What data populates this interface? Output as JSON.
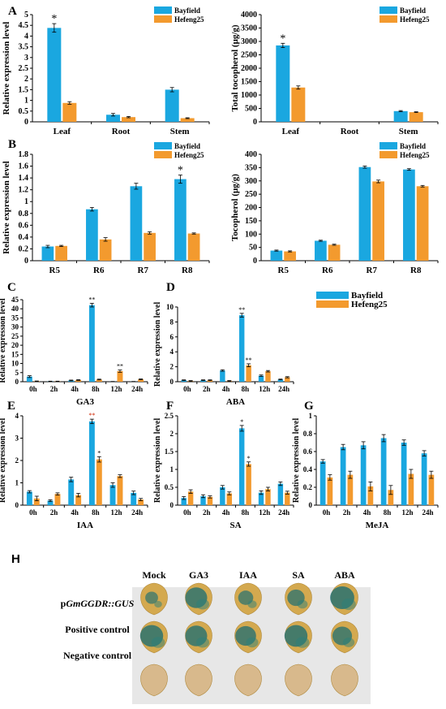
{
  "colors": {
    "bayfield": "#1aa7e0",
    "hefeng25": "#f39a2e",
    "photo_bg": "#e7e7e7"
  },
  "legend_names": [
    "Bayfield",
    "Hefeng25"
  ],
  "chart_data": [
    {
      "id": "A1",
      "letter": "A",
      "type": "bar",
      "ylabel": "Relative expression level",
      "categories": [
        "Leaf",
        "Root",
        "Stem"
      ],
      "ylim": [
        0,
        5
      ],
      "yticks": [
        0,
        0.5,
        1,
        1.5,
        2,
        2.5,
        3,
        3.5,
        4,
        4.5,
        5
      ],
      "series": [
        {
          "name": "Bayfield",
          "values": [
            4.38,
            0.33,
            1.5
          ],
          "err": [
            0.2,
            0.06,
            0.1
          ]
        },
        {
          "name": "Hefeng25",
          "values": [
            0.88,
            0.22,
            0.17
          ],
          "err": [
            0.06,
            0.03,
            0.02
          ]
        }
      ],
      "annotations": [
        {
          "text": "*",
          "category": 0,
          "series": 0
        }
      ],
      "legend": "top-right"
    },
    {
      "id": "A2",
      "letter": "",
      "type": "bar",
      "ylabel": "Total tocopherol (μg/g)",
      "categories": [
        "Leaf",
        "Root",
        "Stem"
      ],
      "ylim": [
        0,
        4000
      ],
      "yticks": [
        0,
        500,
        1000,
        1500,
        2000,
        2500,
        3000,
        3500,
        4000
      ],
      "series": [
        {
          "name": "Bayfield",
          "values": [
            2850,
            0,
            400
          ],
          "err": [
            80,
            0,
            20
          ]
        },
        {
          "name": "Hefeng25",
          "values": [
            1280,
            0,
            360
          ],
          "err": [
            60,
            0,
            15
          ]
        }
      ],
      "annotations": [
        {
          "text": "*",
          "category": 0,
          "series": 0
        }
      ],
      "legend": "top-right"
    },
    {
      "id": "B1",
      "letter": "B",
      "type": "bar",
      "ylabel": "Relative expression level",
      "categories": [
        "R5",
        "R6",
        "R7",
        "R8"
      ],
      "ylim": [
        0,
        1.8
      ],
      "yticks": [
        0,
        0.2,
        0.4,
        0.6,
        0.8,
        1,
        1.2,
        1.4,
        1.6,
        1.8
      ],
      "series": [
        {
          "name": "Bayfield",
          "values": [
            0.24,
            0.87,
            1.26,
            1.38
          ],
          "err": [
            0.02,
            0.03,
            0.05,
            0.07
          ]
        },
        {
          "name": "Hefeng25",
          "values": [
            0.25,
            0.36,
            0.47,
            0.46
          ],
          "err": [
            0.01,
            0.03,
            0.02,
            0.01
          ]
        }
      ],
      "annotations": [
        {
          "text": "*",
          "category": 3,
          "series": 0
        }
      ],
      "legend": "top-right"
    },
    {
      "id": "B2",
      "letter": "",
      "type": "bar",
      "ylabel": "Tocopherol (μg/g)",
      "categories": [
        "R5",
        "R6",
        "R7",
        "R8"
      ],
      "ylim": [
        0,
        400
      ],
      "yticks": [
        0,
        50,
        100,
        150,
        200,
        250,
        300,
        350,
        400
      ],
      "series": [
        {
          "name": "Bayfield",
          "values": [
            38,
            75,
            352,
            343
          ],
          "err": [
            2,
            2,
            4,
            3
          ]
        },
        {
          "name": "Hefeng25",
          "values": [
            35,
            60,
            298,
            280
          ],
          "err": [
            2,
            2,
            5,
            3
          ]
        }
      ],
      "annotations": [],
      "legend": "top-right"
    },
    {
      "id": "C",
      "letter": "C",
      "type": "bar",
      "ylabel": "Relative expression level",
      "xlabel": "GA3",
      "categories": [
        "0h",
        "2h",
        "4h",
        "8h",
        "12h",
        "24h"
      ],
      "ylim": [
        0,
        45
      ],
      "yticks": [
        0,
        5,
        10,
        15,
        20,
        25,
        30,
        35,
        40,
        45
      ],
      "series": [
        {
          "name": "Bayfield",
          "values": [
            2.8,
            0.2,
            0.7,
            42,
            0.1,
            0.1
          ],
          "err": [
            0.5,
            0.1,
            0.2,
            1.0,
            0.05,
            0.05
          ]
        },
        {
          "name": "Hefeng25",
          "values": [
            0.3,
            0.2,
            0.9,
            1.2,
            5.8,
            1.3
          ],
          "err": [
            0.1,
            0.1,
            0.2,
            0.2,
            0.6,
            0.2
          ]
        }
      ],
      "annotations": [
        {
          "text": "**",
          "category": 3,
          "series": 0
        },
        {
          "text": "**",
          "category": 4,
          "series": 1
        }
      ]
    },
    {
      "id": "D",
      "letter": "D",
      "type": "bar",
      "ylabel": "Relative expression level",
      "xlabel": "ABA",
      "categories": [
        "0h",
        "2h",
        "4h",
        "8h",
        "12h",
        "24h"
      ],
      "ylim": [
        0,
        10
      ],
      "yticks": [
        0,
        2,
        4,
        6,
        8,
        10
      ],
      "series": [
        {
          "name": "Bayfield",
          "values": [
            0.2,
            0.2,
            1.5,
            8.9,
            0.8,
            0.3
          ],
          "err": [
            0.05,
            0.05,
            0.1,
            0.25,
            0.1,
            0.05
          ]
        },
        {
          "name": "Hefeng25",
          "values": [
            0.1,
            0.2,
            0.1,
            2.2,
            1.4,
            0.6
          ],
          "err": [
            0.05,
            0.05,
            0.05,
            0.2,
            0.1,
            0.08
          ]
        }
      ],
      "annotations": [
        {
          "text": "**",
          "category": 3,
          "series": 0
        },
        {
          "text": "**",
          "category": 3,
          "series": 1
        }
      ],
      "legend": "right"
    },
    {
      "id": "E",
      "letter": "E",
      "type": "bar",
      "ylabel": "Relative expression level",
      "xlabel": "IAA",
      "categories": [
        "0h",
        "2h",
        "4h",
        "8h",
        "12h",
        "24h"
      ],
      "ylim": [
        0,
        4
      ],
      "yticks": [
        0,
        1,
        2,
        3,
        4
      ],
      "series": [
        {
          "name": "Bayfield",
          "values": [
            0.6,
            0.2,
            1.15,
            3.75,
            0.9,
            0.55
          ],
          "err": [
            0.05,
            0.04,
            0.1,
            0.1,
            0.1,
            0.08
          ]
        },
        {
          "name": "Hefeng25",
          "values": [
            0.3,
            0.5,
            0.45,
            2.05,
            1.3,
            0.25
          ],
          "err": [
            0.1,
            0.05,
            0.08,
            0.12,
            0.06,
            0.05
          ]
        }
      ],
      "annotations": [
        {
          "text": "**",
          "category": 3,
          "series": 0
        },
        {
          "text": "*",
          "category": 3,
          "series": 1
        }
      ]
    },
    {
      "id": "F",
      "letter": "F",
      "type": "bar",
      "ylabel": "Relative expression level",
      "xlabel": "SA",
      "categories": [
        "0h",
        "2h",
        "4h",
        "8h",
        "12h",
        "24h"
      ],
      "ylim": [
        0,
        2.5
      ],
      "yticks": [
        0,
        0.5,
        1,
        1.5,
        2,
        2.5
      ],
      "series": [
        {
          "name": "Bayfield",
          "values": [
            0.2,
            0.25,
            0.5,
            2.15,
            0.35,
            0.6
          ],
          "err": [
            0.04,
            0.04,
            0.05,
            0.08,
            0.05,
            0.05
          ]
        },
        {
          "name": "Hefeng25",
          "values": [
            0.38,
            0.23,
            0.33,
            1.15,
            0.45,
            0.35
          ],
          "err": [
            0.05,
            0.03,
            0.04,
            0.06,
            0.05,
            0.04
          ]
        }
      ],
      "annotations": [
        {
          "text": "*",
          "category": 3,
          "series": 0
        },
        {
          "text": "*",
          "category": 3,
          "series": 1
        }
      ]
    },
    {
      "id": "G",
      "letter": "G",
      "type": "bar",
      "ylabel": "Relative expression level",
      "xlabel": "MeJA",
      "categories": [
        "0h",
        "2h",
        "4h",
        "8h",
        "12h",
        "24h"
      ],
      "ylim": [
        0,
        1
      ],
      "yticks": [
        0,
        0.2,
        0.4,
        0.6,
        0.8,
        1
      ],
      "series": [
        {
          "name": "Bayfield",
          "values": [
            0.49,
            0.65,
            0.67,
            0.75,
            0.7,
            0.58
          ],
          "err": [
            0.02,
            0.03,
            0.04,
            0.04,
            0.03,
            0.03
          ]
        },
        {
          "name": "Hefeng25",
          "values": [
            0.31,
            0.34,
            0.21,
            0.17,
            0.35,
            0.34
          ],
          "err": [
            0.03,
            0.04,
            0.05,
            0.05,
            0.05,
            0.04
          ]
        }
      ],
      "annotations": []
    }
  ],
  "panel_h": {
    "letter": "H",
    "columns": [
      "Mock",
      "GA3",
      "IAA",
      "SA",
      "ABA"
    ],
    "rows": [
      {
        "label_prefix": "p",
        "label_italic": "GmGGDR::GUS",
        "label": "",
        "stain": [
          0.35,
          0.75,
          0.45,
          0.55,
          0.85
        ]
      },
      {
        "label_prefix": "",
        "label_italic": "",
        "label": "Positive control",
        "stain": [
          0.8,
          0.75,
          0.7,
          0.8,
          0.65
        ]
      },
      {
        "label_prefix": "",
        "label_italic": "",
        "label": "Negative control",
        "stain": [
          0,
          0,
          0,
          0,
          0
        ]
      }
    ]
  }
}
